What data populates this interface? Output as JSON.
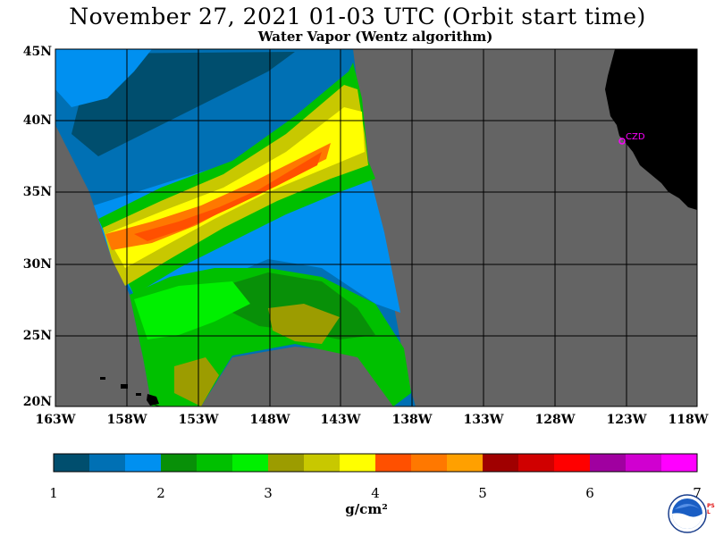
{
  "title": "November 27, 2021  01-03 UTC  (Orbit start time)",
  "subtitle": "Water Vapor (Wentz algorithm)",
  "map": {
    "lat_labels": [
      "45N",
      "40N",
      "35N",
      "30N",
      "25N",
      "20N"
    ],
    "lon_labels": [
      "163W",
      "158W",
      "153W",
      "148W",
      "143W",
      "138W",
      "133W",
      "128W",
      "123W",
      "118W"
    ],
    "station_label": "CZD",
    "colors": {
      "ocean_no_data": "#646464",
      "land": "#000000",
      "grid": "#000000",
      "station": "#ff00ff"
    }
  },
  "colorbar": {
    "ticks": [
      "1",
      "2",
      "3",
      "4",
      "5",
      "6",
      "7"
    ],
    "units": "g/cm²",
    "colors": [
      "#004e6e",
      "#0070b4",
      "#0090f0",
      "#089008",
      "#00c000",
      "#00f000",
      "#9c9c00",
      "#c8c800",
      "#ffff00",
      "#ff5000",
      "#ff7800",
      "#ffa000",
      "#a00000",
      "#d00000",
      "#ff0000",
      "#a000a0",
      "#d000d0",
      "#ff00ff"
    ]
  },
  "logo": {
    "name": "noaa-logo",
    "text": "NOAA",
    "side_text": "PSL"
  }
}
